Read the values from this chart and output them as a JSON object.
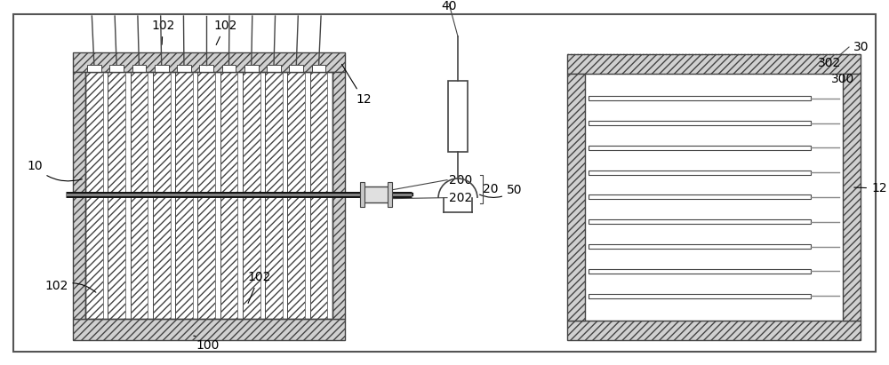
{
  "bg_color": "#ffffff",
  "line_color": "#444444",
  "figsize": [
    10.0,
    4.11
  ],
  "dpi": 100,
  "n_cells": 11,
  "label_fontsize": 10
}
